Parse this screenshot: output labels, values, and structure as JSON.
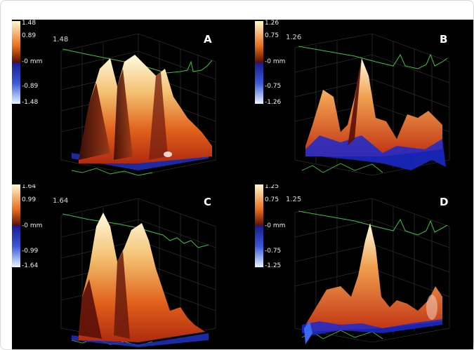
{
  "panels": [
    {
      "id": "A",
      "label": "A",
      "max_label": "1.48",
      "scale": {
        "top": "1.48",
        "upper": "0.89",
        "mid": "-0 mm",
        "lower": "-0.89",
        "bottom": "-1.48"
      }
    },
    {
      "id": "B",
      "label": "B",
      "max_label": "1.26",
      "scale": {
        "top": "1.26",
        "upper": "0.75",
        "mid": "-0 mm",
        "lower": "-0.75",
        "bottom": "-1.26"
      }
    },
    {
      "id": "C",
      "label": "C",
      "max_label": "1.64",
      "scale": {
        "top": "1.64",
        "upper": "0.99",
        "mid": "-0 mm",
        "lower": "-0.99",
        "bottom": "-1.64"
      }
    },
    {
      "id": "D",
      "label": "D",
      "max_label": "1.25",
      "scale": {
        "top": "1.25",
        "upper": "0.75",
        "mid": "-0 mm",
        "lower": "-0.75",
        "bottom": "-1.25"
      }
    }
  ],
  "colors": {
    "background": "#000000",
    "trace": "#3fbf3f",
    "positive_high": "#fff4c8",
    "positive_mid": "#e8601c",
    "positive_low": "#7a1a0c",
    "negative": "#2a2ad8"
  }
}
